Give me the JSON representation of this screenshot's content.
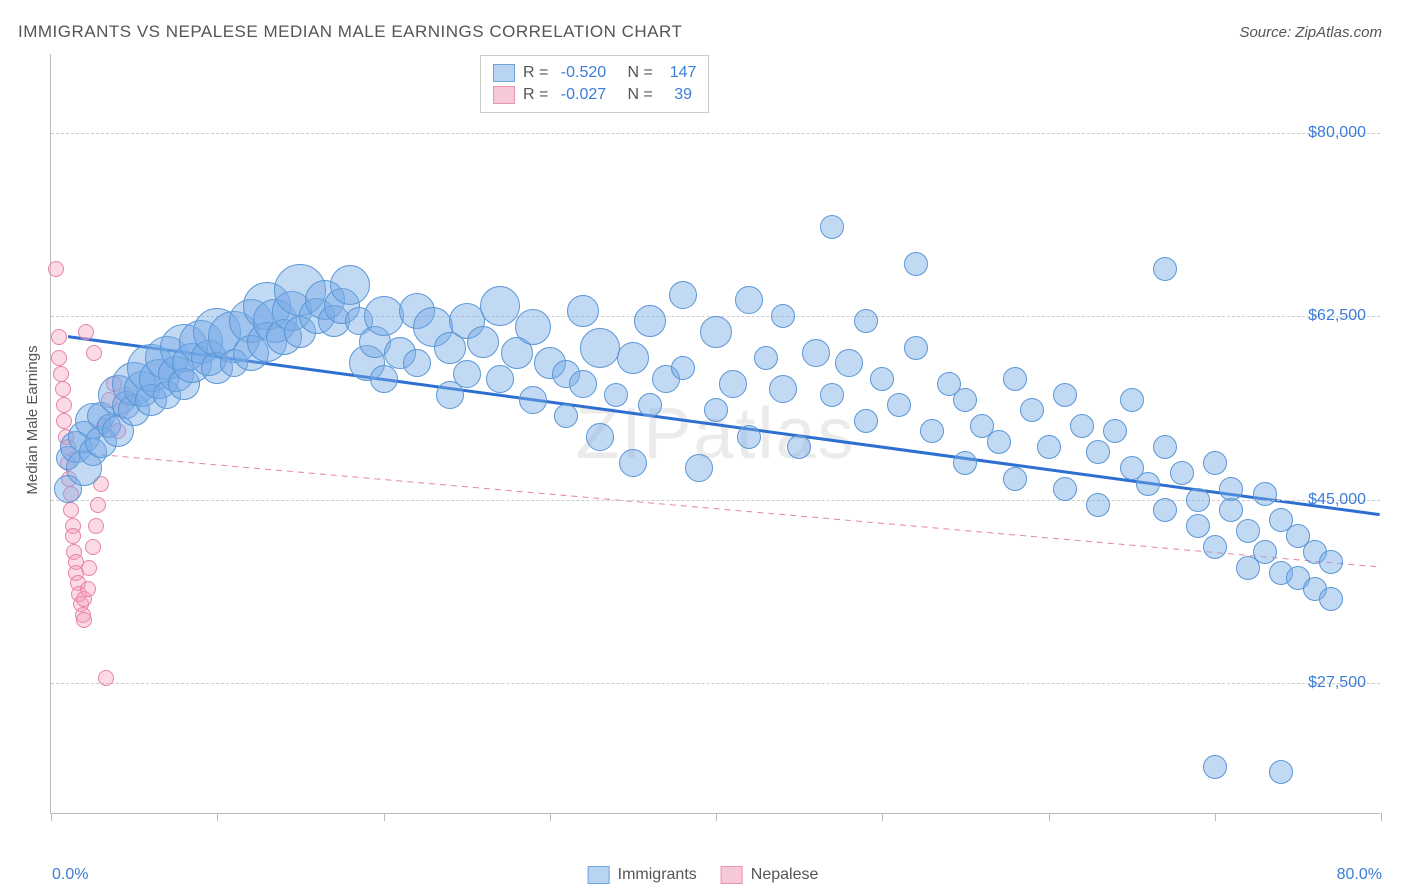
{
  "title": "IMMIGRANTS VS NEPALESE MEDIAN MALE EARNINGS CORRELATION CHART",
  "source": "Source: ZipAtlas.com",
  "watermark": "ZIPatlas",
  "ylabel": "Median Male Earnings",
  "chart": {
    "type": "scatter",
    "xlim": [
      0,
      80
    ],
    "ylim": [
      15000,
      87500
    ],
    "x_tick_start": "0.0%",
    "x_tick_end": "80.0%",
    "x_tick_positions": [
      0,
      10,
      20,
      30,
      40,
      50,
      60,
      70,
      80
    ],
    "y_ticks": [
      {
        "v": 27500,
        "label": "$27,500"
      },
      {
        "v": 45000,
        "label": "$45,000"
      },
      {
        "v": 62500,
        "label": "$62,500"
      },
      {
        "v": 80000,
        "label": "$80,000"
      }
    ],
    "grid_color": "#cccccc",
    "background_color": "#ffffff",
    "axis_color": "#bbbbbb",
    "series": [
      {
        "name": "Immigrants",
        "fill": "rgba(120,170,230,0.45)",
        "stroke": "#5a97d6",
        "swatch_fill": "#b9d4f2",
        "swatch_stroke": "#6fa3db",
        "r_default": 9,
        "R": "-0.520",
        "N": "147",
        "trend": {
          "x1": 1,
          "y1": 60500,
          "x2": 80,
          "y2": 43500,
          "color": "#2d6fd0",
          "width": 3,
          "dash": ""
        },
        "points": [
          [
            1,
            46000,
            14
          ],
          [
            1,
            49000,
            12
          ],
          [
            1.5,
            50000,
            16
          ],
          [
            2,
            48000,
            18
          ],
          [
            2,
            51000,
            16
          ],
          [
            2.5,
            49500,
            14
          ],
          [
            2.5,
            52500,
            18
          ],
          [
            3,
            50500,
            16
          ],
          [
            3,
            53000,
            14
          ],
          [
            3.5,
            52000,
            12
          ],
          [
            4,
            55000,
            20
          ],
          [
            4,
            51500,
            16
          ],
          [
            4.5,
            54000,
            14
          ],
          [
            5,
            56000,
            22
          ],
          [
            5,
            53500,
            16
          ],
          [
            5.5,
            55500,
            18
          ],
          [
            6,
            57500,
            24
          ],
          [
            6,
            54500,
            16
          ],
          [
            6.5,
            56500,
            20
          ],
          [
            7,
            58500,
            22
          ],
          [
            7,
            55000,
            14
          ],
          [
            7.5,
            57000,
            18
          ],
          [
            8,
            59500,
            24
          ],
          [
            8,
            56000,
            16
          ],
          [
            8.5,
            58000,
            20
          ],
          [
            9,
            60000,
            22
          ],
          [
            9.5,
            58500,
            18
          ],
          [
            10,
            61000,
            24
          ],
          [
            10,
            57500,
            16
          ],
          [
            11,
            60500,
            26
          ],
          [
            11,
            58000,
            14
          ],
          [
            12,
            62000,
            22
          ],
          [
            12,
            59000,
            18
          ],
          [
            13,
            63500,
            24
          ],
          [
            13,
            60000,
            20
          ],
          [
            13.5,
            62000,
            22
          ],
          [
            14,
            60500,
            18
          ],
          [
            14.5,
            63000,
            20
          ],
          [
            15,
            65000,
            26
          ],
          [
            15,
            61000,
            16
          ],
          [
            16,
            62500,
            18
          ],
          [
            16.5,
            64000,
            20
          ],
          [
            17,
            62000,
            16
          ],
          [
            17.5,
            63500,
            18
          ],
          [
            18,
            65500,
            20
          ],
          [
            18.5,
            62000,
            14
          ],
          [
            19,
            58000,
            18
          ],
          [
            19.5,
            60000,
            16
          ],
          [
            20,
            62500,
            20
          ],
          [
            20,
            56500,
            14
          ],
          [
            21,
            59000,
            16
          ],
          [
            22,
            63000,
            18
          ],
          [
            22,
            58000,
            14
          ],
          [
            23,
            61500,
            20
          ],
          [
            24,
            59500,
            16
          ],
          [
            24,
            55000,
            14
          ],
          [
            25,
            62000,
            18
          ],
          [
            25,
            57000,
            14
          ],
          [
            26,
            60000,
            16
          ],
          [
            27,
            63500,
            20
          ],
          [
            27,
            56500,
            14
          ],
          [
            28,
            59000,
            16
          ],
          [
            29,
            61500,
            18
          ],
          [
            29,
            54500,
            14
          ],
          [
            30,
            58000,
            16
          ],
          [
            31,
            57000,
            14
          ],
          [
            31,
            53000,
            12
          ],
          [
            32,
            63000,
            16
          ],
          [
            32,
            56000,
            14
          ],
          [
            33,
            59500,
            20
          ],
          [
            33,
            51000,
            14
          ],
          [
            34,
            55000,
            12
          ],
          [
            35,
            58500,
            16
          ],
          [
            35,
            48500,
            14
          ],
          [
            36,
            62000,
            16
          ],
          [
            36,
            54000,
            12
          ],
          [
            37,
            56500,
            14
          ],
          [
            38,
            64500,
            14
          ],
          [
            38,
            57500,
            12
          ],
          [
            39,
            48000,
            14
          ],
          [
            40,
            61000,
            16
          ],
          [
            40,
            53500,
            12
          ],
          [
            41,
            56000,
            14
          ],
          [
            42,
            64000,
            14
          ],
          [
            42,
            51000,
            12
          ],
          [
            43,
            58500,
            12
          ],
          [
            44,
            55500,
            14
          ],
          [
            44,
            62500,
            12
          ],
          [
            45,
            50000,
            12
          ],
          [
            46,
            59000,
            14
          ],
          [
            47,
            71000,
            12
          ],
          [
            47,
            55000,
            12
          ],
          [
            48,
            58000,
            14
          ],
          [
            49,
            52500,
            12
          ],
          [
            49,
            62000,
            12
          ],
          [
            50,
            56500,
            12
          ],
          [
            51,
            54000,
            12
          ],
          [
            52,
            59500,
            12
          ],
          [
            52,
            67500,
            12
          ],
          [
            53,
            51500,
            12
          ],
          [
            54,
            56000,
            12
          ],
          [
            55,
            48500,
            12
          ],
          [
            55,
            54500,
            12
          ],
          [
            56,
            52000,
            12
          ],
          [
            57,
            50500,
            12
          ],
          [
            58,
            56500,
            12
          ],
          [
            58,
            47000,
            12
          ],
          [
            59,
            53500,
            12
          ],
          [
            60,
            50000,
            12
          ],
          [
            61,
            55000,
            12
          ],
          [
            61,
            46000,
            12
          ],
          [
            62,
            52000,
            12
          ],
          [
            63,
            49500,
            12
          ],
          [
            63,
            44500,
            12
          ],
          [
            64,
            51500,
            12
          ],
          [
            65,
            48000,
            12
          ],
          [
            65,
            54500,
            12
          ],
          [
            66,
            46500,
            12
          ],
          [
            67,
            50000,
            12
          ],
          [
            67,
            44000,
            12
          ],
          [
            67,
            67000,
            12
          ],
          [
            68,
            47500,
            12
          ],
          [
            69,
            45000,
            12
          ],
          [
            69,
            42500,
            12
          ],
          [
            70,
            48500,
            12
          ],
          [
            70,
            40500,
            12
          ],
          [
            71,
            46000,
            12
          ],
          [
            71,
            44000,
            12
          ],
          [
            72,
            42000,
            12
          ],
          [
            72,
            38500,
            12
          ],
          [
            73,
            45500,
            12
          ],
          [
            73,
            40000,
            12
          ],
          [
            74,
            43000,
            12
          ],
          [
            74,
            38000,
            12
          ],
          [
            75,
            41500,
            12
          ],
          [
            75,
            37500,
            12
          ],
          [
            76,
            40000,
            12
          ],
          [
            76,
            36500,
            12
          ],
          [
            77,
            39000,
            12
          ],
          [
            77,
            35500,
            12
          ],
          [
            70,
            19500,
            12
          ],
          [
            74,
            19000,
            12
          ]
        ]
      },
      {
        "name": "Nepalese",
        "fill": "rgba(245,160,190,0.4)",
        "stroke": "#e783a8",
        "swatch_fill": "#f7c9d8",
        "swatch_stroke": "#ea94b5",
        "r_default": 8,
        "R": "-0.027",
        "N": "39",
        "trend": {
          "x1": 1,
          "y1": 49500,
          "x2": 80,
          "y2": 38500,
          "color": "#e783a8",
          "width": 1,
          "dash": "6,5"
        },
        "points": [
          [
            0.3,
            67000,
            8
          ],
          [
            0.5,
            60500,
            8
          ],
          [
            0.5,
            58500,
            8
          ],
          [
            0.6,
            57000,
            8
          ],
          [
            0.7,
            55500,
            8
          ],
          [
            0.8,
            54000,
            8
          ],
          [
            0.8,
            52500,
            8
          ],
          [
            0.9,
            51000,
            8
          ],
          [
            1.0,
            50000,
            8
          ],
          [
            1.0,
            48500,
            8
          ],
          [
            1.1,
            47000,
            8
          ],
          [
            1.2,
            45500,
            8
          ],
          [
            1.2,
            44000,
            8
          ],
          [
            1.3,
            42500,
            8
          ],
          [
            1.3,
            41500,
            8
          ],
          [
            1.4,
            40000,
            8
          ],
          [
            1.5,
            39000,
            8
          ],
          [
            1.5,
            38000,
            8
          ],
          [
            1.6,
            37000,
            8
          ],
          [
            1.7,
            36000,
            8
          ],
          [
            1.8,
            35000,
            8
          ],
          [
            1.9,
            34000,
            8
          ],
          [
            2.0,
            33500,
            8
          ],
          [
            2.0,
            35500,
            8
          ],
          [
            2.2,
            36500,
            8
          ],
          [
            2.3,
            38500,
            8
          ],
          [
            2.5,
            40500,
            8
          ],
          [
            2.7,
            42500,
            8
          ],
          [
            2.8,
            44500,
            8
          ],
          [
            3.0,
            46500,
            8
          ],
          [
            3.2,
            52000,
            8
          ],
          [
            3.5,
            54500,
            8
          ],
          [
            3.8,
            56000,
            8
          ],
          [
            4.0,
            51500,
            8
          ],
          [
            4.2,
            53500,
            8
          ],
          [
            4.5,
            55000,
            8
          ],
          [
            3.3,
            28000,
            8
          ],
          [
            2.1,
            61000,
            8
          ],
          [
            2.6,
            59000,
            8
          ]
        ]
      }
    ]
  },
  "legend_labels": {
    "R": "R = ",
    "N": "   N = "
  },
  "bottom_legend": [
    {
      "label": "Immigrants",
      "fill": "#b9d4f2",
      "stroke": "#6fa3db"
    },
    {
      "label": "Nepalese",
      "fill": "#f7c9d8",
      "stroke": "#ea94b5"
    }
  ]
}
